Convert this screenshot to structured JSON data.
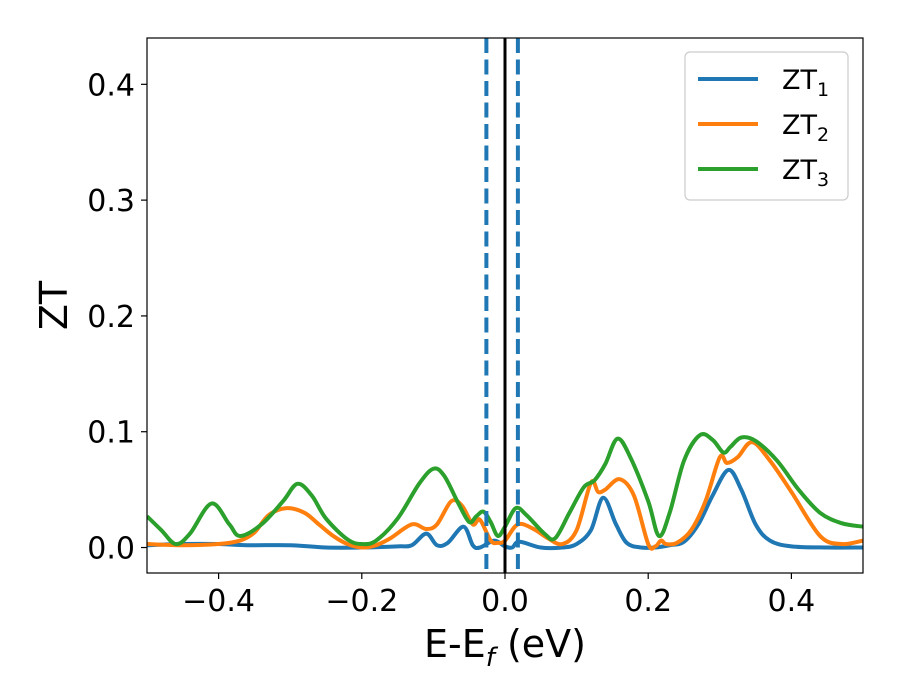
{
  "chart_data": {
    "type": "line",
    "xlabel": "E-E",
    "xlabel_sub": "f",
    "xlabel_unit": " (eV)",
    "ylabel": "ZT",
    "xlim": [
      -0.5,
      0.5
    ],
    "ylim": [
      -0.022,
      0.44
    ],
    "xticks": [
      -0.4,
      -0.2,
      0.0,
      0.2,
      0.4
    ],
    "xtick_labels": [
      "−0.4",
      "−0.2",
      "0.0",
      "0.2",
      "0.4"
    ],
    "yticks": [
      0.0,
      0.1,
      0.2,
      0.3,
      0.4
    ],
    "ytick_labels": [
      "0.0",
      "0.1",
      "0.2",
      "0.3",
      "0.4"
    ],
    "grid": false,
    "legend_position": "top-right",
    "vlines": [
      {
        "x": 0.0,
        "color": "#000000",
        "style": "solid"
      },
      {
        "x": -0.026,
        "color": "#1f77b4",
        "style": "dashed"
      },
      {
        "x": 0.018,
        "color": "#1f77b4",
        "style": "dashed"
      }
    ],
    "series": [
      {
        "name": "ZT",
        "sub": "1",
        "color": "#1f77b4",
        "points": [
          [
            -0.5,
            0.002
          ],
          [
            -0.45,
            0.003
          ],
          [
            -0.4,
            0.003
          ],
          [
            -0.36,
            0.002
          ],
          [
            -0.3,
            0.002
          ],
          [
            -0.25,
            0.0
          ],
          [
            -0.2,
            0.0
          ],
          [
            -0.15,
            0.001
          ],
          [
            -0.13,
            0.002
          ],
          [
            -0.11,
            0.012
          ],
          [
            -0.095,
            0.002
          ],
          [
            -0.08,
            0.004
          ],
          [
            -0.058,
            0.018
          ],
          [
            -0.045,
            0.002
          ],
          [
            -0.035,
            0.0
          ],
          [
            -0.015,
            0.006
          ],
          [
            0.0,
            0.001
          ],
          [
            0.01,
            0.0
          ],
          [
            0.02,
            0.005
          ],
          [
            0.05,
            0.0
          ],
          [
            0.08,
            0.0
          ],
          [
            0.1,
            0.003
          ],
          [
            0.12,
            0.015
          ],
          [
            0.137,
            0.043
          ],
          [
            0.155,
            0.02
          ],
          [
            0.17,
            0.004
          ],
          [
            0.19,
            0.0
          ],
          [
            0.21,
            0.0
          ],
          [
            0.23,
            0.002
          ],
          [
            0.25,
            0.005
          ],
          [
            0.27,
            0.02
          ],
          [
            0.29,
            0.045
          ],
          [
            0.312,
            0.067
          ],
          [
            0.33,
            0.05
          ],
          [
            0.35,
            0.02
          ],
          [
            0.37,
            0.006
          ],
          [
            0.4,
            0.001
          ],
          [
            0.45,
            0.0
          ],
          [
            0.5,
            0.0
          ]
        ]
      },
      {
        "name": "ZT",
        "sub": "2",
        "color": "#ff7f0e",
        "points": [
          [
            -0.5,
            0.003
          ],
          [
            -0.45,
            0.002
          ],
          [
            -0.4,
            0.003
          ],
          [
            -0.37,
            0.006
          ],
          [
            -0.35,
            0.013
          ],
          [
            -0.33,
            0.028
          ],
          [
            -0.305,
            0.034
          ],
          [
            -0.28,
            0.03
          ],
          [
            -0.26,
            0.02
          ],
          [
            -0.24,
            0.01
          ],
          [
            -0.22,
            0.003
          ],
          [
            -0.2,
            0.0
          ],
          [
            -0.18,
            0.002
          ],
          [
            -0.16,
            0.008
          ],
          [
            -0.13,
            0.02
          ],
          [
            -0.11,
            0.016
          ],
          [
            -0.095,
            0.02
          ],
          [
            -0.075,
            0.04
          ],
          [
            -0.06,
            0.036
          ],
          [
            -0.045,
            0.02
          ],
          [
            -0.035,
            0.024
          ],
          [
            -0.02,
            0.006
          ],
          [
            -0.01,
            0.004
          ],
          [
            0.0,
            0.006
          ],
          [
            0.018,
            0.02
          ],
          [
            0.04,
            0.016
          ],
          [
            0.06,
            0.008
          ],
          [
            0.08,
            0.003
          ],
          [
            0.1,
            0.015
          ],
          [
            0.12,
            0.056
          ],
          [
            0.13,
            0.048
          ],
          [
            0.14,
            0.05
          ],
          [
            0.16,
            0.059
          ],
          [
            0.18,
            0.045
          ],
          [
            0.2,
            0.003
          ],
          [
            0.21,
            0.001
          ],
          [
            0.218,
            0.006
          ],
          [
            0.225,
            0.003
          ],
          [
            0.24,
            0.004
          ],
          [
            0.26,
            0.015
          ],
          [
            0.28,
            0.04
          ],
          [
            0.3,
            0.078
          ],
          [
            0.31,
            0.073
          ],
          [
            0.325,
            0.078
          ],
          [
            0.345,
            0.091
          ],
          [
            0.37,
            0.075
          ],
          [
            0.4,
            0.048
          ],
          [
            0.44,
            0.01
          ],
          [
            0.47,
            0.003
          ],
          [
            0.5,
            0.006
          ]
        ]
      },
      {
        "name": "ZT",
        "sub": "3",
        "color": "#2ca02c",
        "points": [
          [
            -0.5,
            0.027
          ],
          [
            -0.48,
            0.015
          ],
          [
            -0.46,
            0.003
          ],
          [
            -0.44,
            0.012
          ],
          [
            -0.41,
            0.038
          ],
          [
            -0.385,
            0.02
          ],
          [
            -0.37,
            0.01
          ],
          [
            -0.34,
            0.02
          ],
          [
            -0.31,
            0.04
          ],
          [
            -0.29,
            0.055
          ],
          [
            -0.27,
            0.045
          ],
          [
            -0.25,
            0.025
          ],
          [
            -0.22,
            0.007
          ],
          [
            -0.2,
            0.003
          ],
          [
            -0.18,
            0.006
          ],
          [
            -0.15,
            0.025
          ],
          [
            -0.12,
            0.055
          ],
          [
            -0.1,
            0.068
          ],
          [
            -0.085,
            0.062
          ],
          [
            -0.065,
            0.038
          ],
          [
            -0.05,
            0.022
          ],
          [
            -0.04,
            0.027
          ],
          [
            -0.03,
            0.031
          ],
          [
            -0.02,
            0.022
          ],
          [
            -0.01,
            0.01
          ],
          [
            0.0,
            0.018
          ],
          [
            0.015,
            0.034
          ],
          [
            0.03,
            0.028
          ],
          [
            0.055,
            0.012
          ],
          [
            0.07,
            0.008
          ],
          [
            0.09,
            0.03
          ],
          [
            0.11,
            0.052
          ],
          [
            0.125,
            0.058
          ],
          [
            0.14,
            0.072
          ],
          [
            0.157,
            0.094
          ],
          [
            0.175,
            0.078
          ],
          [
            0.2,
            0.04
          ],
          [
            0.215,
            0.01
          ],
          [
            0.23,
            0.03
          ],
          [
            0.25,
            0.075
          ],
          [
            0.272,
            0.097
          ],
          [
            0.29,
            0.093
          ],
          [
            0.305,
            0.082
          ],
          [
            0.315,
            0.087
          ],
          [
            0.33,
            0.095
          ],
          [
            0.35,
            0.092
          ],
          [
            0.38,
            0.075
          ],
          [
            0.41,
            0.05
          ],
          [
            0.44,
            0.03
          ],
          [
            0.47,
            0.021
          ],
          [
            0.5,
            0.018
          ]
        ]
      }
    ]
  }
}
